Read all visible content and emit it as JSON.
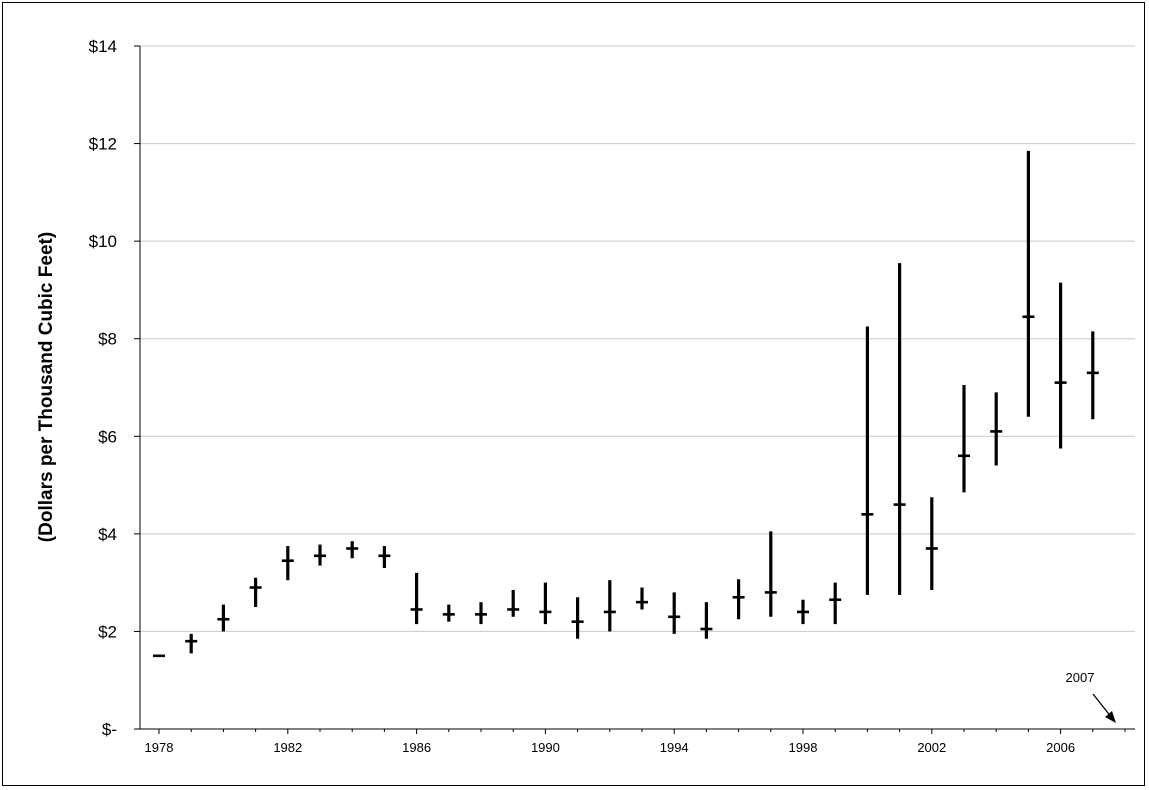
{
  "chart_data": {
    "type": "high-low-close",
    "title": "",
    "xlabel": "",
    "ylabel": "(Dollars per Thousand Cubic Feet)",
    "ylim": [
      0,
      14
    ],
    "xlim": [
      1978,
      2008
    ],
    "grid": "horizontal",
    "y_ticks": [
      {
        "value": 0,
        "label": "$-"
      },
      {
        "value": 2,
        "label": "$2"
      },
      {
        "value": 4,
        "label": "$4"
      },
      {
        "value": 6,
        "label": "$6"
      },
      {
        "value": 8,
        "label": "$8"
      },
      {
        "value": 10,
        "label": "$10"
      },
      {
        "value": 12,
        "label": "$12"
      },
      {
        "value": 14,
        "label": "$14"
      }
    ],
    "x_ticks": [
      "1978",
      "1982",
      "1986",
      "1990",
      "1994",
      "1998",
      "2002",
      "2006"
    ],
    "x_tick_values": [
      1978,
      1982,
      1986,
      1990,
      1994,
      1998,
      2002,
      2006
    ],
    "series": [
      {
        "name": "",
        "x": [
          1978,
          1979,
          1980,
          1981,
          1982,
          1983,
          1984,
          1985,
          1986,
          1987,
          1988,
          1989,
          1990,
          1991,
          1992,
          1993,
          1994,
          1995,
          1996,
          1997,
          1998,
          1999,
          2000,
          2001,
          2002,
          2003,
          2004,
          2005,
          2006,
          2007
        ],
        "high": [
          1.5,
          1.95,
          2.55,
          3.1,
          3.75,
          3.78,
          3.85,
          3.75,
          3.2,
          2.55,
          2.6,
          2.85,
          3.0,
          2.7,
          3.05,
          2.9,
          2.8,
          2.6,
          3.07,
          4.05,
          2.65,
          3.0,
          8.25,
          9.55,
          4.75,
          7.05,
          6.9,
          11.85,
          9.15,
          8.15
        ],
        "low": [
          1.5,
          1.55,
          2.0,
          2.5,
          3.05,
          3.35,
          3.5,
          3.3,
          2.15,
          2.2,
          2.15,
          2.3,
          2.15,
          1.85,
          2.0,
          2.45,
          1.95,
          1.85,
          2.25,
          2.3,
          2.15,
          2.15,
          2.75,
          2.75,
          2.85,
          4.85,
          5.4,
          6.4,
          5.75,
          6.35
        ],
        "close": [
          1.5,
          1.8,
          2.25,
          2.9,
          3.45,
          3.55,
          3.7,
          3.55,
          2.45,
          2.35,
          2.35,
          2.45,
          2.4,
          2.2,
          2.4,
          2.6,
          2.3,
          2.05,
          2.7,
          2.8,
          2.4,
          2.65,
          4.4,
          4.6,
          3.7,
          5.6,
          6.1,
          8.45,
          7.1,
          7.3
        ]
      }
    ],
    "annotations": [
      {
        "text": "2007",
        "points_to_x": 2007
      }
    ]
  }
}
